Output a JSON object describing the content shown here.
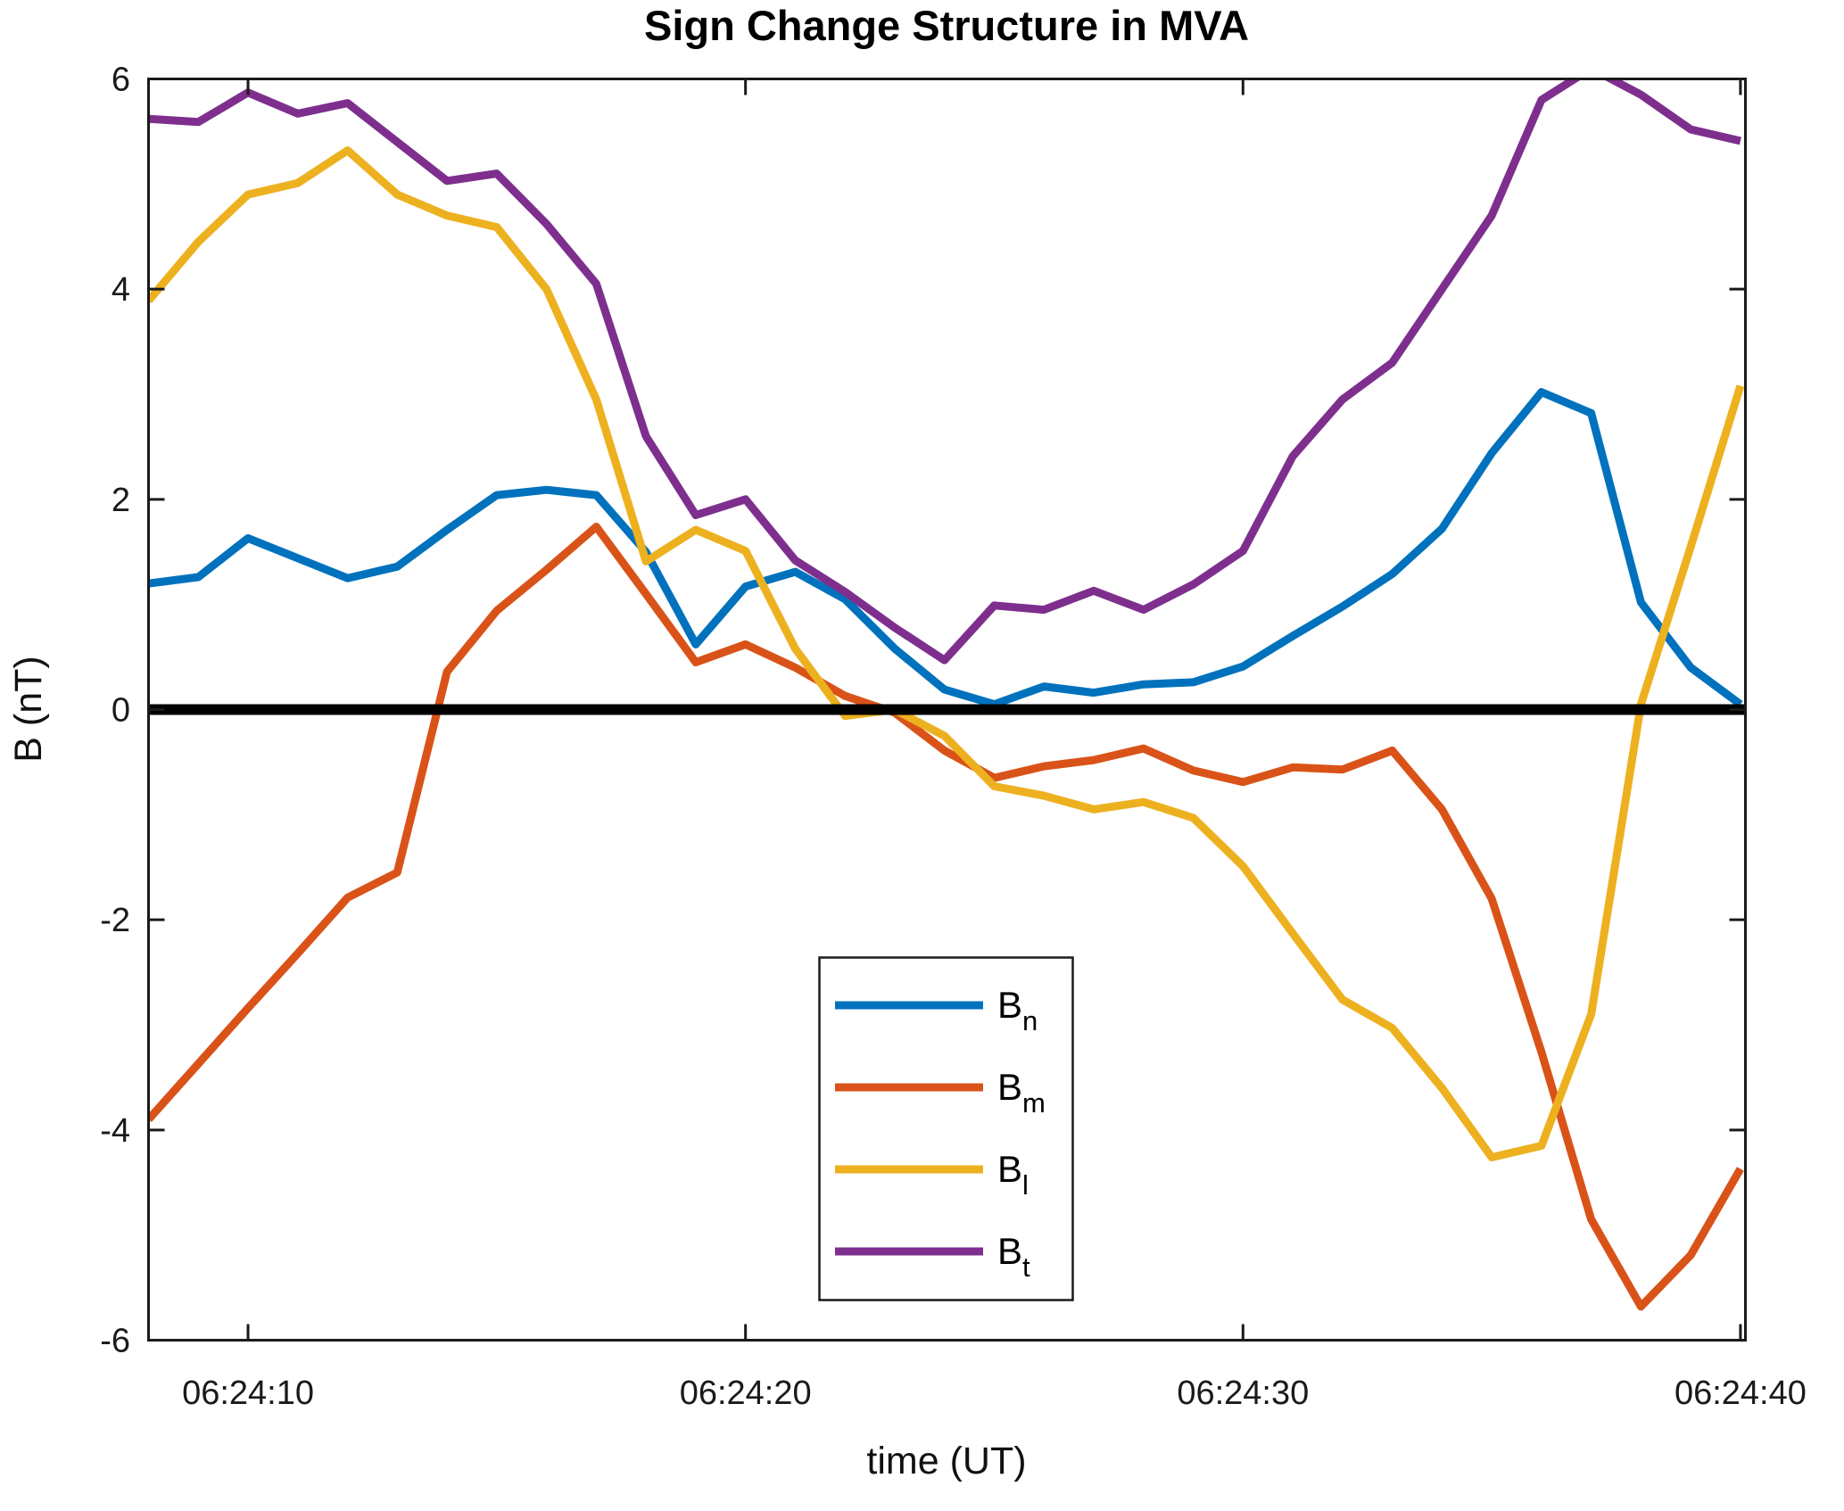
{
  "chart_data": {
    "type": "line",
    "title": "Sign Change Structure in MVA",
    "xlabel": "time (UT)",
    "ylabel": "B (nT)",
    "x_unit": "seconds after 06:24:00 UT",
    "x": [
      8,
      9,
      10,
      11,
      12,
      13,
      14,
      15,
      16,
      17,
      18,
      19,
      20,
      21,
      22,
      23,
      24,
      25,
      26,
      27,
      28,
      29,
      30,
      31,
      32,
      33,
      34,
      35,
      36,
      37,
      38,
      39,
      40
    ],
    "xlim": [
      8,
      40.1
    ],
    "ylim": [
      -6,
      6
    ],
    "grid": false,
    "axis_color": "#1a1a1a",
    "tick_label_color": "#1a1a1a",
    "x_tick_seconds": [
      10,
      20,
      30,
      40
    ],
    "x_tick_labels": [
      "06:24:10",
      "06:24:20",
      "06:24:30",
      "06:24:40"
    ],
    "y_ticks": [
      -6,
      -4,
      -2,
      0,
      2,
      4,
      6
    ],
    "y_tick_labels": [
      "-6",
      "-4",
      "-2",
      "0",
      "2",
      "4",
      "6"
    ],
    "zero_line": {
      "value": 0,
      "color": "#000000"
    },
    "legend": {
      "position": "inside-bottom-center",
      "entries": [
        {
          "main": "B",
          "sub": "n",
          "series": "Bn"
        },
        {
          "main": "B",
          "sub": "m",
          "series": "Bm"
        },
        {
          "main": "B",
          "sub": "l",
          "series": "Bl"
        },
        {
          "main": "B",
          "sub": "t",
          "series": "Bt"
        }
      ]
    },
    "series": [
      {
        "name": "Bn",
        "label": "B_n",
        "color": "#0072BD",
        "values": [
          1.2,
          1.26,
          1.63,
          1.44,
          1.25,
          1.36,
          1.71,
          2.04,
          2.09,
          2.04,
          1.5,
          0.62,
          1.17,
          1.31,
          1.05,
          0.58,
          0.19,
          0.05,
          0.22,
          0.16,
          0.24,
          0.26,
          0.41,
          0.7,
          0.98,
          1.29,
          1.72,
          2.44,
          3.02,
          2.82,
          1.02,
          0.4,
          0.05
        ]
      },
      {
        "name": "Bm",
        "label": "B_m",
        "color": "#D95319",
        "values": [
          -3.9,
          -3.37,
          -2.84,
          -2.32,
          -1.79,
          -1.55,
          0.36,
          0.94,
          1.33,
          1.74,
          1.1,
          0.45,
          0.62,
          0.4,
          0.13,
          -0.03,
          -0.39,
          -0.65,
          -0.54,
          -0.48,
          -0.37,
          -0.58,
          -0.69,
          -0.55,
          -0.57,
          -0.39,
          -0.95,
          -1.8,
          -3.26,
          -4.85,
          -5.68,
          -5.19,
          -4.37
        ]
      },
      {
        "name": "Bl",
        "label": "B_l",
        "color": "#EDB120",
        "values": [
          3.89,
          4.45,
          4.9,
          5.01,
          5.32,
          4.9,
          4.7,
          4.59,
          4.0,
          2.95,
          1.41,
          1.71,
          1.51,
          0.58,
          -0.06,
          0.0,
          -0.25,
          -0.73,
          -0.82,
          -0.95,
          -0.88,
          -1.03,
          -1.49,
          -2.13,
          -2.76,
          -3.03,
          -3.6,
          -4.26,
          -4.15,
          -2.9,
          0.05,
          1.55,
          3.08
        ]
      },
      {
        "name": "Bt",
        "label": "B_t",
        "color": "#7E2F8E",
        "values": [
          5.62,
          5.59,
          5.87,
          5.67,
          5.77,
          5.4,
          5.03,
          5.1,
          4.62,
          4.05,
          2.6,
          1.85,
          2.0,
          1.42,
          1.12,
          0.78,
          0.47,
          0.99,
          0.95,
          1.13,
          0.95,
          1.19,
          1.51,
          2.41,
          2.95,
          3.3,
          4.0,
          4.7,
          5.8,
          6.1,
          5.85,
          5.52,
          5.41
        ]
      }
    ]
  }
}
